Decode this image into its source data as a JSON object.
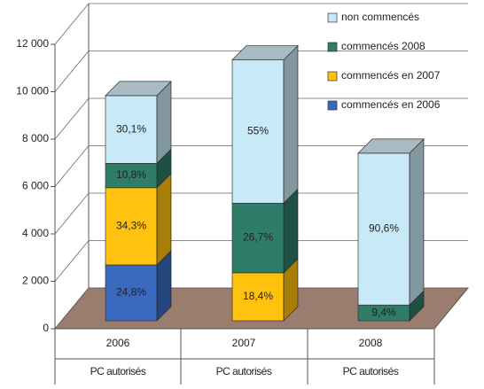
{
  "chart_data": {
    "type": "stacked-bar-3d",
    "categories": [
      "2006",
      "2007",
      "2008"
    ],
    "x_sublabel": "PC autorisés",
    "ylim": [
      0,
      12000
    ],
    "yticks": [
      0,
      {
        "value": 2000,
        "label": "2 000"
      },
      {
        "value": 4000,
        "label": "4 000"
      },
      {
        "value": 6000,
        "label": "6 000"
      },
      {
        "value": 8000,
        "label": "8 000"
      },
      {
        "value": 10000,
        "label": "10 000"
      },
      {
        "value": 12000,
        "label": "12 000"
      }
    ],
    "grid": true,
    "legend": "top-right",
    "series": [
      {
        "name": "commencés en 2006",
        "color": "#3a6ac0",
        "values": [
          2356,
          null,
          null
        ],
        "shares": [
          24.8,
          null,
          null
        ],
        "share_labels": [
          "24,8%",
          null,
          null
        ]
      },
      {
        "name": "commencés en 2007",
        "color": "#ffc20e",
        "values": [
          3259,
          2024,
          null
        ],
        "shares": [
          34.3,
          18.4,
          null
        ],
        "share_labels": [
          "34,3%",
          "18,4%",
          null
        ]
      },
      {
        "name": "commencés 2008",
        "color": "#2f7d68",
        "values": [
          1026,
          2937,
          665
        ],
        "shares": [
          10.8,
          26.7,
          9.4
        ],
        "share_labels": [
          "10,8%",
          "26,7%",
          "9,4%"
        ]
      },
      {
        "name": "non commencés",
        "color": "#c8eaf8",
        "values": [
          2860,
          6050,
          6405
        ],
        "shares": [
          30.1,
          55,
          90.6
        ],
        "share_labels": [
          "30,1%",
          "55%",
          "90,6%"
        ]
      }
    ]
  }
}
